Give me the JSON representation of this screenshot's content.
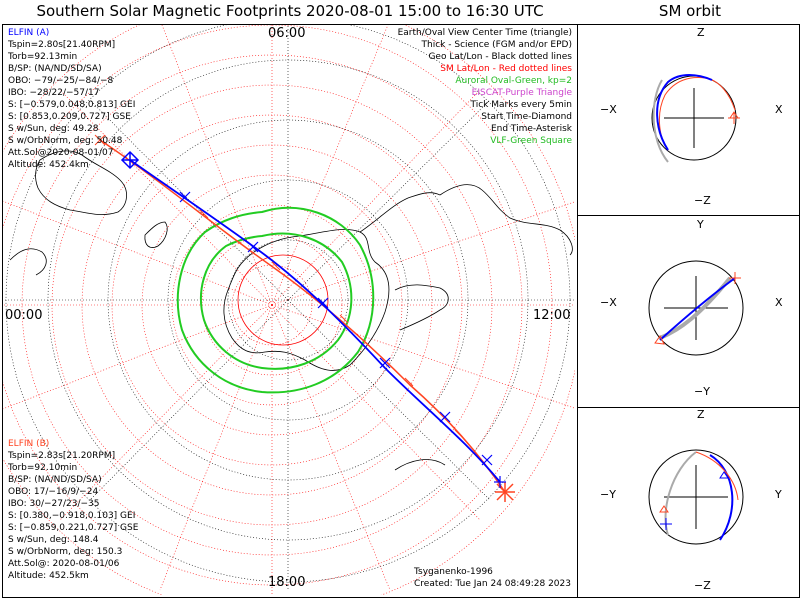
{
  "title": "Southern Solar Magnetic Footprints 2020-08-01 15:00 to 16:30 UTC",
  "orbit_title": "SM orbit",
  "clock_labels": {
    "top": "06:00",
    "left": "00:00",
    "right": "12:00",
    "bottom": "18:00"
  },
  "elfin_a": {
    "name": "ELFIN (A)",
    "lines": [
      "Tspin=2.80s[21.40RPM]",
      "Torb=92.13min",
      "B/SP: (NA/ND/SD/SA)",
      "OBO: −79/−25/−84/−8",
      "IBO: −28/22/−57/17",
      "S: [−0.579,0.048,0.813] GEI",
      "S: [0.853,0.209,0.727] GSE",
      "S w/Sun, deg: 49.28",
      "S w/OrbNorm, deg: 50.48",
      "Att.Sol@2020-08-01/07",
      "Altitude: 452.4km"
    ]
  },
  "elfin_b": {
    "name": "ELFIN (B)",
    "lines": [
      "Tspin=2.83s[21.20RPM]",
      "Torb=92.10min",
      "B/SP: (NA/ND/SD/SA)",
      "OBO: 17/−16/9/−24",
      "IBO: 30/−27/23/−35",
      "S: [0.380,−0.918,0.103] GEI",
      "S: [−0.859,0.221,0.727] GSE",
      "S w/Sun, deg: 148.4",
      "S w/OrbNorm, deg: 150.3",
      "Att.Sol@: 2020-08-01/06",
      "Altitude: 452.5km"
    ]
  },
  "legend": [
    {
      "text": "Earth/Oval View Center Time (triangle)",
      "color": "#000000"
    },
    {
      "text": "Thick - Science (FGM and/or EPD)",
      "color": "#000000"
    },
    {
      "text": "Geo Lat/Lon - Black dotted lines",
      "color": "#000000"
    },
    {
      "text": "SM Lat/Lon - Red dotted lines",
      "color": "#ff0000"
    },
    {
      "text": "Auroral Oval-Green, kp=2",
      "color": "#22bb22"
    },
    {
      "text": "EISCAT-Purple Triangle",
      "color": "#cc44cc"
    },
    {
      "text": "Tick Marks every 5min",
      "color": "#000000"
    },
    {
      "text": "Start Time-Diamond",
      "color": "#000000"
    },
    {
      "text": "End Time-Asterisk",
      "color": "#000000"
    },
    {
      "text": "VLF-Green Square",
      "color": "#22bb22"
    }
  ],
  "footer": {
    "model": "Tsyganenko-1996",
    "created": "Created: Tue Jan 24 08:49:28 2023"
  },
  "orbit_panels": [
    {
      "top": "Z",
      "bottom": "−Z",
      "left": "−X",
      "right": "X"
    },
    {
      "top": "Y",
      "bottom": "−Y",
      "left": "−X",
      "right": "X"
    },
    {
      "top": "Z",
      "bottom": "−Z",
      "left": "−Y",
      "right": "Y"
    }
  ],
  "colors": {
    "elfin_a": "#0000ff",
    "elfin_b": "#ff4422",
    "oval": "#22cc22",
    "sm_grid": "#ff0000",
    "geo_grid": "#000000",
    "orbit_shadow": "#aaaaaa"
  }
}
